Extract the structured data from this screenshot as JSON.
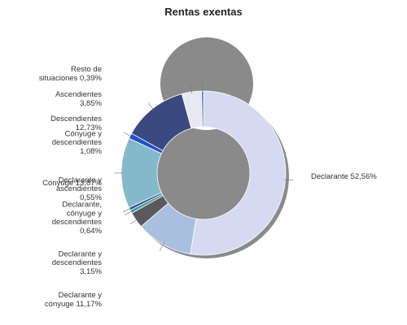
{
  "chart_data": {
    "type": "pie",
    "title": "Rentas exentas",
    "slices": [
      {
        "name": "Declarante",
        "value": 52.56,
        "label_lines": [
          "Declarante 52,56%"
        ],
        "color": "#d6daf0"
      },
      {
        "name": "Declarante y cónyuge",
        "value": 11.17,
        "label_lines": [
          "Declarante y",
          "cónyuge 11,17%"
        ],
        "color": "#a9bfe0"
      },
      {
        "name": "Declarante y descendientes",
        "value": 3.15,
        "label_lines": [
          "Declarante y",
          "descendientes",
          "3,15%"
        ],
        "color": "#5a5a5e"
      },
      {
        "name": "Declarante, cónyuge y descendientes",
        "value": 0.64,
        "label_lines": [
          "Declarante,",
          "cónyuge y",
          "descendientes",
          "0,64%"
        ],
        "color": "#3f9aa4"
      },
      {
        "name": "Declarante y ascendientes",
        "value": 0.55,
        "label_lines": [
          "Declarante y",
          "ascendientes",
          "0,55%"
        ],
        "color": "#2d4f86"
      },
      {
        "name": "Cónyuge",
        "value": 13.87,
        "label_lines": [
          "Cónyuge 13,87%"
        ],
        "color": "#84b9cc"
      },
      {
        "name": "Cónyuge y descendientes",
        "value": 1.08,
        "label_lines": [
          "Cónyuge y",
          "descendientes",
          "1,08%"
        ],
        "color": "#2452c6"
      },
      {
        "name": "Descendientes",
        "value": 12.73,
        "label_lines": [
          "Descendientes",
          "12,73%"
        ],
        "color": "#3a4a80"
      },
      {
        "name": "Ascendientes",
        "value": 3.85,
        "label_lines": [
          "Ascendientes",
          "3,85%"
        ],
        "color": "#e6e8f2"
      },
      {
        "name": "Resto de situaciones",
        "value": 0.39,
        "label_lines": [
          "Resto de",
          "situaciones 0,39%"
        ],
        "color": "#4a6fa0"
      }
    ]
  }
}
